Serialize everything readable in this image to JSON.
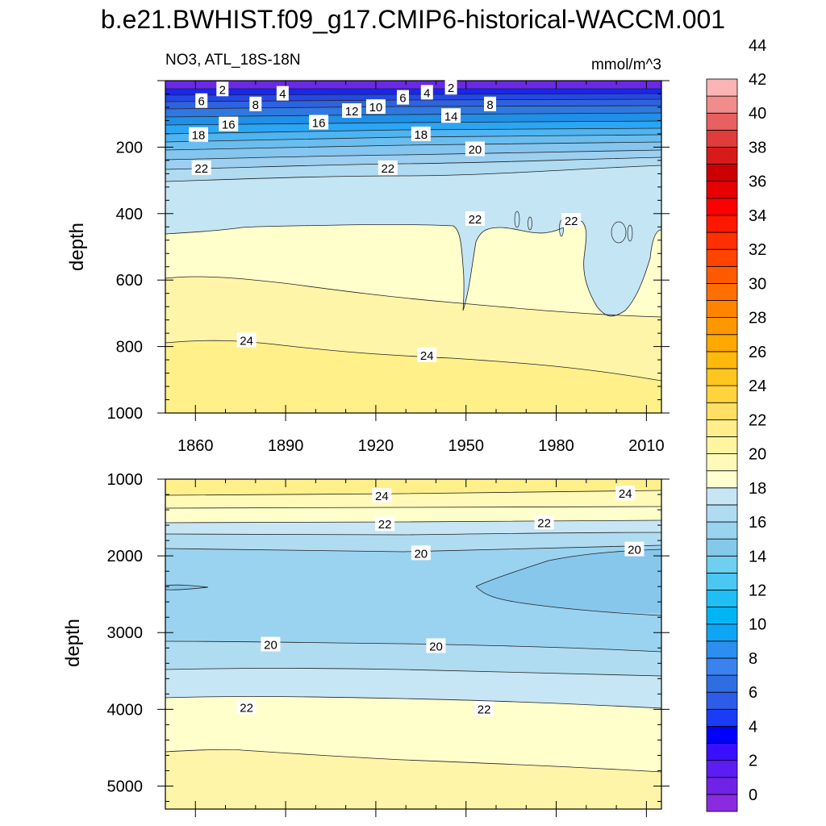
{
  "title": "b.e21.BWHIST.f09_g17.CMIP6-historical-WACCM.001",
  "subtitle_left": "NO3, ATL_18S-18N",
  "subtitle_right": "mmol/m^3",
  "chart_data": [
    {
      "type": "heatmap",
      "panel": "top",
      "variable": "NO3",
      "region": "ATL_18S-18N",
      "units": "mmol/m^3",
      "xlabel": "",
      "ylabel": "depth",
      "xlim": [
        1850,
        2015
      ],
      "ylim": [
        1000,
        0
      ],
      "x_ticks": [
        1860,
        1890,
        1920,
        1950,
        1980,
        2010
      ],
      "y_ticks": [
        200,
        400,
        600,
        800,
        1000
      ],
      "contour_labels": [
        {
          "text": "2",
          "x": 1869,
          "y": 25
        },
        {
          "text": "4",
          "x": 1889,
          "y": 38
        },
        {
          "text": "2",
          "x": 1945,
          "y": 20
        },
        {
          "text": "4",
          "x": 1937,
          "y": 35
        },
        {
          "text": "6",
          "x": 1862,
          "y": 60
        },
        {
          "text": "8",
          "x": 1880,
          "y": 70
        },
        {
          "text": "6",
          "x": 1929,
          "y": 50
        },
        {
          "text": "8",
          "x": 1958,
          "y": 70
        },
        {
          "text": "10",
          "x": 1920,
          "y": 78
        },
        {
          "text": "12",
          "x": 1912,
          "y": 90
        },
        {
          "text": "14",
          "x": 1945,
          "y": 105
        },
        {
          "text": "16",
          "x": 1871,
          "y": 130
        },
        {
          "text": "16",
          "x": 1901,
          "y": 125
        },
        {
          "text": "18",
          "x": 1861,
          "y": 162
        },
        {
          "text": "18",
          "x": 1935,
          "y": 160
        },
        {
          "text": "20",
          "x": 1953,
          "y": 205
        },
        {
          "text": "22",
          "x": 1862,
          "y": 262
        },
        {
          "text": "22",
          "x": 1924,
          "y": 262
        },
        {
          "text": "22",
          "x": 1953,
          "y": 415
        },
        {
          "text": "22",
          "x": 1985,
          "y": 420
        },
        {
          "text": "24",
          "x": 1877,
          "y": 780
        },
        {
          "text": "24",
          "x": 1937,
          "y": 825
        }
      ]
    },
    {
      "type": "heatmap",
      "panel": "bottom",
      "variable": "NO3",
      "units": "mmol/m^3",
      "xlabel": "",
      "ylabel": "depth",
      "xlim": [
        1850,
        2015
      ],
      "ylim": [
        5300,
        1000
      ],
      "y_ticks": [
        1000,
        2000,
        3000,
        4000,
        5000
      ],
      "contour_labels": [
        {
          "text": "24",
          "x": 1922,
          "y": 1210
        },
        {
          "text": "24",
          "x": 2003,
          "y": 1180
        },
        {
          "text": "22",
          "x": 1923,
          "y": 1580
        },
        {
          "text": "22",
          "x": 1976,
          "y": 1560
        },
        {
          "text": "20",
          "x": 1935,
          "y": 1960
        },
        {
          "text": "20",
          "x": 2006,
          "y": 1910
        },
        {
          "text": "20",
          "x": 1885,
          "y": 3150
        },
        {
          "text": "20",
          "x": 1940,
          "y": 3170
        },
        {
          "text": "22",
          "x": 1877,
          "y": 3970
        },
        {
          "text": "22",
          "x": 1956,
          "y": 3990
        }
      ]
    }
  ],
  "colorbar": {
    "labels": [
      "0",
      "2",
      "4",
      "6",
      "8",
      "10",
      "12",
      "14",
      "16",
      "18",
      "20",
      "22",
      "24",
      "26",
      "28",
      "30",
      "32",
      "34",
      "36",
      "38",
      "40",
      "42",
      "44"
    ],
    "colors": [
      "#8a2be2",
      "#7022e6",
      "#5d1cf2",
      "#3a0fff",
      "#0000ff",
      "#1a3cf5",
      "#2e5ce8",
      "#2f6ee0",
      "#3a82f0",
      "#2b8ef0",
      "#0ea5f5",
      "#00b4f6",
      "#1fbef5",
      "#4cc6f2",
      "#6ecff0",
      "#85c9ea",
      "#9ad3ef",
      "#b0dcf2",
      "#c6e6f5",
      "#ffffd0",
      "#fffab8",
      "#fff5a0",
      "#ffee8a",
      "#ffe065",
      "#ffd33c",
      "#ffc61f",
      "#ffb80c",
      "#ffa800",
      "#ff9800",
      "#ff8500",
      "#ff7000",
      "#ff5a00",
      "#ff4400",
      "#ff3000",
      "#ff1800",
      "#ff0000",
      "#e60000",
      "#cc0000",
      "#d81a1a",
      "#e03c3c",
      "#e86060",
      "#f08c8c",
      "#fab4b4"
    ]
  }
}
